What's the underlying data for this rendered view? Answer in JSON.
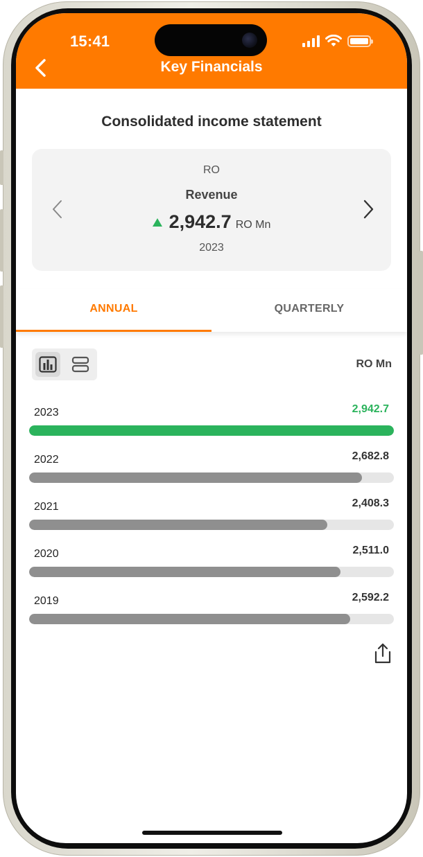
{
  "status_bar": {
    "time": "15:41"
  },
  "header": {
    "title": "Key Financials",
    "back_icon": "chevron-left-icon"
  },
  "section": {
    "title": "Consolidated income statement"
  },
  "summary_card": {
    "unit_top": "RO",
    "label": "Revenue",
    "value": "2,942.7",
    "unit": "RO Mn",
    "year": "2023",
    "trend": "up",
    "trend_color": "#2bb35c"
  },
  "tabs": [
    {
      "label": "ANNUAL",
      "active": true
    },
    {
      "label": "QUARTERLY",
      "active": false
    }
  ],
  "toolbar": {
    "unit_label": "RO Mn",
    "chart_view_icon": "bar-chart-icon",
    "list_view_icon": "list-view-icon"
  },
  "chart_data": {
    "type": "bar",
    "orientation": "horizontal",
    "categories": [
      "2023",
      "2022",
      "2021",
      "2020",
      "2019"
    ],
    "values": [
      2942.7,
      2682.8,
      2408.3,
      2511.0,
      2592.2
    ],
    "value_labels": [
      "2,942.7",
      "2,682.8",
      "2,408.3",
      "2,511.0",
      "2,592.2"
    ],
    "highlight_index": 0,
    "xlim": [
      0,
      2942.7
    ],
    "colors": {
      "highlight": "#2bb35c",
      "default": "#8f8f8f",
      "track": "#e6e6e6"
    }
  },
  "share": {
    "icon": "share-icon"
  },
  "colors": {
    "brand": "#ff7a00",
    "text": "#2d2d2d"
  }
}
